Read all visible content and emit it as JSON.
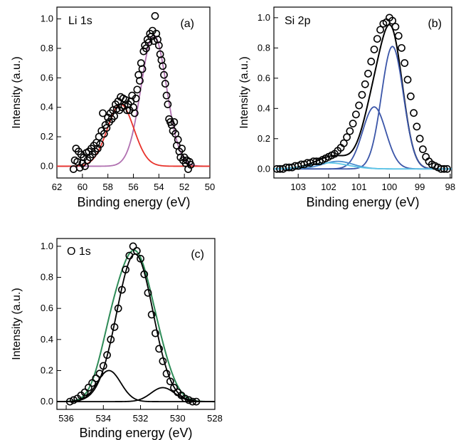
{
  "chart_data": [
    {
      "type": "scatter",
      "panel": "(a)",
      "title": "Li 1s",
      "xlabel": "Binding energy (eV)",
      "ylabel": "Intensity (a.u.)",
      "xlim": [
        62,
        50
      ],
      "ylim": [
        -0.08,
        1.08
      ],
      "x_ticks": [
        62,
        60,
        58,
        56,
        54,
        52,
        50
      ],
      "x_tick_labels": [
        "62",
        "60",
        "58",
        "56",
        "54",
        "52",
        "50"
      ],
      "y_ticks": [
        0.0,
        0.2,
        0.4,
        0.6,
        0.8,
        1.0
      ],
      "y_tick_labels": [
        "0.0",
        "0.2",
        "0.4",
        "0.6",
        "0.8",
        "1.0"
      ],
      "x_reversed": true,
      "grid": false,
      "points": {
        "x": [
          60.7,
          60.6,
          60.5,
          60.4,
          60.3,
          60.2,
          60.1,
          60.0,
          59.9,
          59.8,
          59.7,
          59.6,
          59.5,
          59.4,
          59.3,
          59.2,
          59.1,
          59.0,
          58.9,
          58.8,
          58.7,
          58.6,
          58.5,
          58.4,
          58.3,
          58.2,
          58.1,
          58.0,
          57.9,
          57.8,
          57.7,
          57.6,
          57.5,
          57.4,
          57.3,
          57.2,
          57.1,
          57.0,
          56.9,
          56.8,
          56.7,
          56.6,
          56.5,
          56.4,
          56.3,
          56.2,
          56.1,
          56.0,
          55.9,
          55.8,
          55.7,
          55.6,
          55.5,
          55.4,
          55.3,
          55.2,
          55.1,
          55.0,
          54.9,
          54.8,
          54.7,
          54.6,
          54.5,
          54.4,
          54.3,
          54.2,
          54.1,
          54.0,
          53.9,
          53.8,
          53.7,
          53.6,
          53.5,
          53.4,
          53.3,
          53.2,
          53.1,
          53.0,
          52.9,
          52.8,
          52.7,
          52.6,
          52.5,
          52.4,
          52.3,
          52.2,
          52.1,
          52.0,
          51.9,
          51.8,
          51.7,
          51.6,
          51.5
        ],
        "y": [
          -0.02,
          0.04,
          0.12,
          0.03,
          0.1,
          -0.01,
          0.08,
          0.02,
          0.06,
          0.0,
          0.09,
          0.04,
          0.1,
          0.06,
          0.12,
          0.08,
          0.14,
          0.1,
          0.16,
          0.12,
          0.2,
          0.15,
          0.24,
          0.36,
          0.22,
          0.28,
          0.26,
          0.33,
          0.3,
          0.36,
          0.32,
          0.38,
          0.34,
          0.42,
          0.39,
          0.44,
          0.38,
          0.47,
          0.4,
          0.46,
          0.41,
          0.45,
          0.38,
          0.42,
          0.38,
          0.44,
          0.48,
          0.4,
          0.36,
          0.46,
          0.52,
          0.62,
          0.58,
          0.7,
          0.66,
          0.78,
          0.82,
          0.8,
          0.86,
          0.84,
          0.9,
          0.88,
          0.92,
          0.85,
          1.02,
          0.9,
          0.86,
          0.82,
          0.76,
          0.72,
          0.68,
          0.62,
          0.56,
          0.48,
          0.42,
          0.32,
          0.3,
          0.28,
          0.24,
          0.3,
          0.22,
          0.14,
          0.18,
          0.1,
          0.06,
          0.12,
          0.04,
          0.06,
          0.02,
          0.04,
          -0.02,
          0.03,
          0.01
        ]
      },
      "fits": [
        {
          "color": "#b070b0",
          "components": [
            {
              "center": 54.4,
              "height": 0.89,
              "fwhm": 2.35
            }
          ]
        },
        {
          "color": "#e8322b",
          "components": [
            {
              "center": 57.0,
              "height": 0.42,
              "fwhm": 2.45
            }
          ]
        }
      ]
    },
    {
      "type": "scatter",
      "panel": "(b)",
      "title": "Si 2p",
      "xlabel": "Binding energy (eV)",
      "ylabel": "Intensity (a.u.)",
      "xlim": [
        103.8,
        97.95
      ],
      "ylim": [
        -0.06,
        1.07
      ],
      "x_ticks": [
        103,
        102,
        101,
        100,
        99,
        98
      ],
      "x_tick_labels": [
        "103",
        "102",
        "101",
        "100",
        "99",
        "98"
      ],
      "y_ticks": [
        0.0,
        0.2,
        0.4,
        0.6,
        0.8,
        1.0
      ],
      "y_tick_labels": [
        "0.0",
        "0.2",
        "0.4",
        "0.6",
        "0.8",
        "1.0"
      ],
      "x_reversed": true,
      "grid": false,
      "points": {
        "x": [
          103.7,
          103.6,
          103.5,
          103.4,
          103.3,
          103.2,
          103.1,
          103.0,
          102.9,
          102.8,
          102.7,
          102.6,
          102.5,
          102.4,
          102.3,
          102.2,
          102.1,
          102.0,
          101.9,
          101.8,
          101.7,
          101.6,
          101.5,
          101.4,
          101.3,
          101.2,
          101.1,
          101.0,
          100.9,
          100.8,
          100.7,
          100.6,
          100.5,
          100.4,
          100.3,
          100.2,
          100.1,
          100.0,
          99.9,
          99.8,
          99.7,
          99.6,
          99.5,
          99.4,
          99.3,
          99.2,
          99.1,
          99.0,
          98.9,
          98.8,
          98.7,
          98.6,
          98.5,
          98.4,
          98.3,
          98.2,
          98.1
        ],
        "y": [
          0.0,
          0.0,
          0.0,
          0.01,
          0.01,
          0.01,
          0.02,
          0.02,
          0.03,
          0.03,
          0.04,
          0.04,
          0.05,
          0.05,
          0.05,
          0.06,
          0.07,
          0.08,
          0.09,
          0.1,
          0.12,
          0.14,
          0.17,
          0.21,
          0.25,
          0.3,
          0.36,
          0.42,
          0.49,
          0.56,
          0.63,
          0.71,
          0.79,
          0.86,
          0.92,
          0.96,
          0.97,
          1.0,
          0.98,
          0.94,
          0.88,
          0.8,
          0.7,
          0.59,
          0.48,
          0.37,
          0.28,
          0.2,
          0.13,
          0.08,
          0.05,
          0.03,
          0.02,
          0.01,
          0.0,
          0.0,
          0.0
        ]
      },
      "fits": [
        {
          "color": "#000000",
          "envelope": true
        },
        {
          "color": "#3a55a8",
          "components": [
            {
              "center": 99.9,
              "height": 0.81,
              "fwhm": 0.85
            }
          ]
        },
        {
          "color": "#3a55a8",
          "components": [
            {
              "center": 100.5,
              "height": 0.41,
              "fwhm": 0.9
            }
          ]
        },
        {
          "color": "#4a8fd0",
          "components": [
            {
              "center": 101.7,
              "height": 0.05,
              "fwhm": 1.2
            }
          ]
        },
        {
          "color": "#5fc8e8",
          "components": [
            {
              "center": 102.0,
              "height": 0.04,
              "fwhm": 1.5
            }
          ]
        }
      ]
    },
    {
      "type": "scatter",
      "panel": "(c)",
      "title": "O 1s",
      "xlabel": "Binding energy (eV)",
      "ylabel": "Intensity (a.u.)",
      "xlim": [
        536.5,
        528.0
      ],
      "ylim": [
        -0.05,
        1.05
      ],
      "x_ticks": [
        536,
        534,
        532,
        530,
        528
      ],
      "x_tick_labels": [
        "536",
        "534",
        "532",
        "530",
        "528"
      ],
      "y_ticks": [
        0.0,
        0.2,
        0.4,
        0.6,
        0.8,
        1.0
      ],
      "y_tick_labels": [
        "0.0",
        "0.2",
        "0.4",
        "0.6",
        "0.8",
        "1.0"
      ],
      "x_reversed": true,
      "grid": false,
      "points": {
        "x": [
          535.8,
          535.6,
          535.4,
          535.2,
          535.0,
          534.8,
          534.6,
          534.4,
          534.2,
          534.0,
          533.8,
          533.6,
          533.4,
          533.2,
          533.0,
          532.8,
          532.6,
          532.4,
          532.2,
          532.0,
          531.8,
          531.6,
          531.4,
          531.2,
          531.0,
          530.8,
          530.6,
          530.4,
          530.2,
          530.0,
          529.8,
          529.6,
          529.4,
          529.2,
          529.0
        ],
        "y": [
          0.0,
          0.01,
          0.02,
          0.04,
          0.06,
          0.09,
          0.12,
          0.15,
          0.18,
          0.23,
          0.3,
          0.4,
          0.48,
          0.6,
          0.72,
          0.85,
          0.94,
          1.0,
          0.97,
          0.92,
          0.82,
          0.7,
          0.56,
          0.44,
          0.34,
          0.26,
          0.18,
          0.13,
          0.09,
          0.06,
          0.04,
          0.02,
          0.01,
          0.0,
          0.0
        ]
      },
      "fits": [
        {
          "color": "#2e8b57",
          "envelope": true
        },
        {
          "color": "#000000",
          "components": [
            {
              "center": 532.3,
              "height": 0.95,
              "fwhm": 2.3
            }
          ]
        },
        {
          "color": "#000000",
          "components": [
            {
              "center": 533.7,
              "height": 0.2,
              "fwhm": 1.5
            }
          ]
        },
        {
          "color": "#000000",
          "components": [
            {
              "center": 530.8,
              "height": 0.09,
              "fwhm": 1.5
            }
          ]
        }
      ]
    }
  ]
}
